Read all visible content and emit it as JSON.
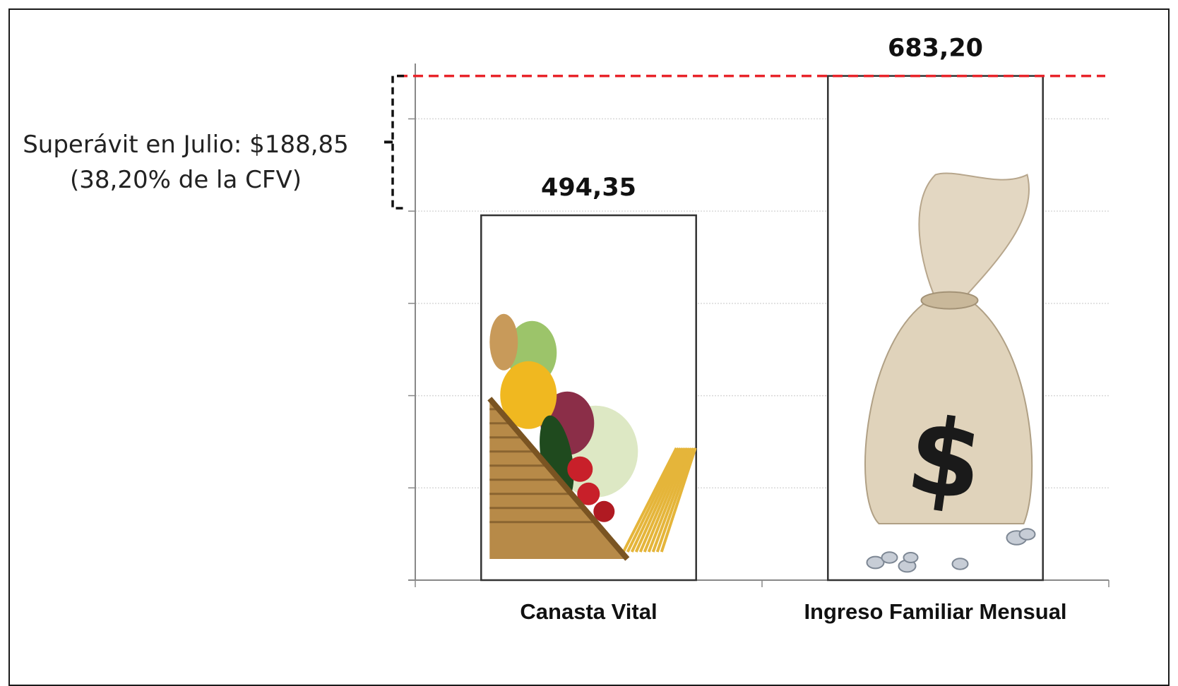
{
  "chart_data": {
    "type": "bar",
    "categories": [
      "Canasta Vital",
      "Ingreso Familiar Mensual"
    ],
    "values": [
      494.35,
      683.2
    ],
    "value_labels": [
      "494,35",
      "683,20"
    ],
    "ylim": [
      0,
      700
    ],
    "grid": true,
    "reference_line": {
      "value": 683.2,
      "color": "#e8242a",
      "style": "dashed"
    },
    "annotation": {
      "line1": "Superávit en Julio: $188,85",
      "line2": "(38,20% de la CFV)"
    },
    "bar_icons": [
      "vegetable-basket-icon",
      "money-bag-icon"
    ],
    "colors": {
      "bar_fill": "#ffffff",
      "bar_stroke": "#333333",
      "grid": "#d9d9d9",
      "axis": "#888888",
      "reference_line": "#e8242a"
    }
  }
}
